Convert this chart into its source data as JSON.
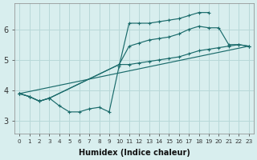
{
  "xlabel": "Humidex (Indice chaleur)",
  "bg_color": "#d8eeee",
  "grid_color": "#b8d8d8",
  "line_color": "#1a6b6b",
  "xlim": [
    -0.5,
    23.5
  ],
  "ylim": [
    2.6,
    6.85
  ],
  "lines": [
    {
      "x": [
        0,
        1,
        2,
        3,
        4,
        5,
        6,
        7,
        8,
        9,
        10,
        11,
        12,
        13,
        14,
        15,
        16,
        17,
        18,
        19
      ],
      "y": [
        3.9,
        3.8,
        3.65,
        3.75,
        3.5,
        3.3,
        3.3,
        3.4,
        3.45,
        3.3,
        4.8,
        6.2,
        6.2,
        6.2,
        6.25,
        6.3,
        6.35,
        6.45,
        6.55,
        6.55
      ]
    },
    {
      "x": [
        0,
        1,
        2,
        3,
        10,
        11,
        12,
        13,
        14,
        15,
        16,
        17,
        18,
        19,
        20,
        21,
        22,
        23
      ],
      "y": [
        3.9,
        3.8,
        3.65,
        3.75,
        4.85,
        4.85,
        4.9,
        4.95,
        5.0,
        5.05,
        5.1,
        5.2,
        5.3,
        5.35,
        5.4,
        5.45,
        5.5,
        5.45
      ]
    },
    {
      "x": [
        0,
        23
      ],
      "y": [
        3.9,
        5.45
      ]
    },
    {
      "x": [
        0,
        1,
        2,
        3,
        10,
        11,
        12,
        13,
        14,
        15,
        16,
        17,
        18,
        19,
        20,
        21,
        22,
        23
      ],
      "y": [
        3.9,
        3.8,
        3.65,
        3.75,
        4.85,
        5.45,
        5.55,
        5.65,
        5.7,
        5.75,
        5.85,
        6.0,
        6.1,
        6.05,
        6.05,
        5.5,
        5.5,
        5.45
      ]
    }
  ],
  "xticks": [
    0,
    1,
    2,
    3,
    4,
    5,
    6,
    7,
    8,
    9,
    10,
    11,
    12,
    13,
    14,
    15,
    16,
    17,
    18,
    19,
    20,
    21,
    22,
    23
  ],
  "yticks": [
    3,
    4,
    5,
    6
  ]
}
